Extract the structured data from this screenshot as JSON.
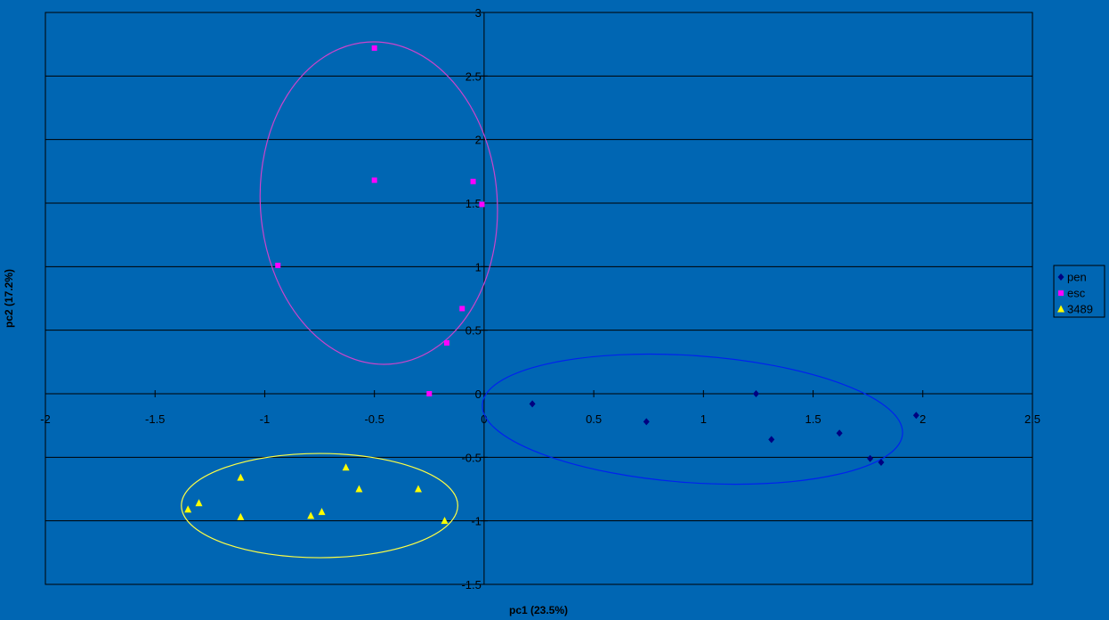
{
  "chart_data": {
    "type": "scatter",
    "xlabel": "pc1 (23.5%)",
    "ylabel": "pc2 (17.2%)",
    "xlim": [
      -2,
      2.5
    ],
    "ylim": [
      -1.5,
      3
    ],
    "x_ticks": [
      -2,
      -1.5,
      -1,
      -0.5,
      0,
      0.5,
      1,
      1.5,
      2,
      2.5
    ],
    "y_ticks": [
      -1.5,
      -1,
      -0.5,
      0,
      0.5,
      1,
      1.5,
      2,
      2.5,
      3
    ],
    "grid": "horizontal",
    "legend_position": "right",
    "series": [
      {
        "name": "pen",
        "marker": "diamond",
        "color": "#000080",
        "points": [
          [
            0.22,
            -0.08
          ],
          [
            0.74,
            -0.22
          ],
          [
            1.24,
            0.0
          ],
          [
            1.31,
            -0.36
          ],
          [
            1.62,
            -0.31
          ],
          [
            1.76,
            -0.51
          ],
          [
            1.81,
            -0.54
          ],
          [
            1.97,
            -0.17
          ]
        ]
      },
      {
        "name": "esc",
        "marker": "square",
        "color": "#ff00ff",
        "points": [
          [
            -0.5,
            2.72
          ],
          [
            -0.5,
            1.68
          ],
          [
            -0.05,
            1.67
          ],
          [
            -0.01,
            1.49
          ],
          [
            -0.94,
            1.01
          ],
          [
            -0.1,
            0.67
          ],
          [
            -0.17,
            0.4
          ],
          [
            -0.25,
            0.0
          ]
        ]
      },
      {
        "name": "3489",
        "marker": "triangle",
        "color": "#ffff00",
        "points": [
          [
            -1.11,
            -0.66
          ],
          [
            -1.3,
            -0.86
          ],
          [
            -1.35,
            -0.91
          ],
          [
            -1.11,
            -0.97
          ],
          [
            -0.63,
            -0.58
          ],
          [
            -0.57,
            -0.75
          ],
          [
            -0.3,
            -0.75
          ],
          [
            -0.79,
            -0.96
          ],
          [
            -0.74,
            -0.93
          ],
          [
            -0.18,
            -1.0
          ]
        ]
      }
    ],
    "ellipses": [
      {
        "group": "esc",
        "color": "#cc44cc",
        "center": [
          -0.48,
          1.5
        ],
        "rx": 0.54,
        "ry": 1.27,
        "angle_deg": -4
      },
      {
        "group": "pen",
        "color": "#0022ee",
        "center": [
          0.95,
          -0.2
        ],
        "rx": 0.96,
        "ry": 0.5,
        "angle_deg": 4
      },
      {
        "group": "3489",
        "color": "#ffff44",
        "center": [
          -0.75,
          -0.88
        ],
        "rx": 0.63,
        "ry": 0.41,
        "angle_deg": 0
      }
    ]
  }
}
